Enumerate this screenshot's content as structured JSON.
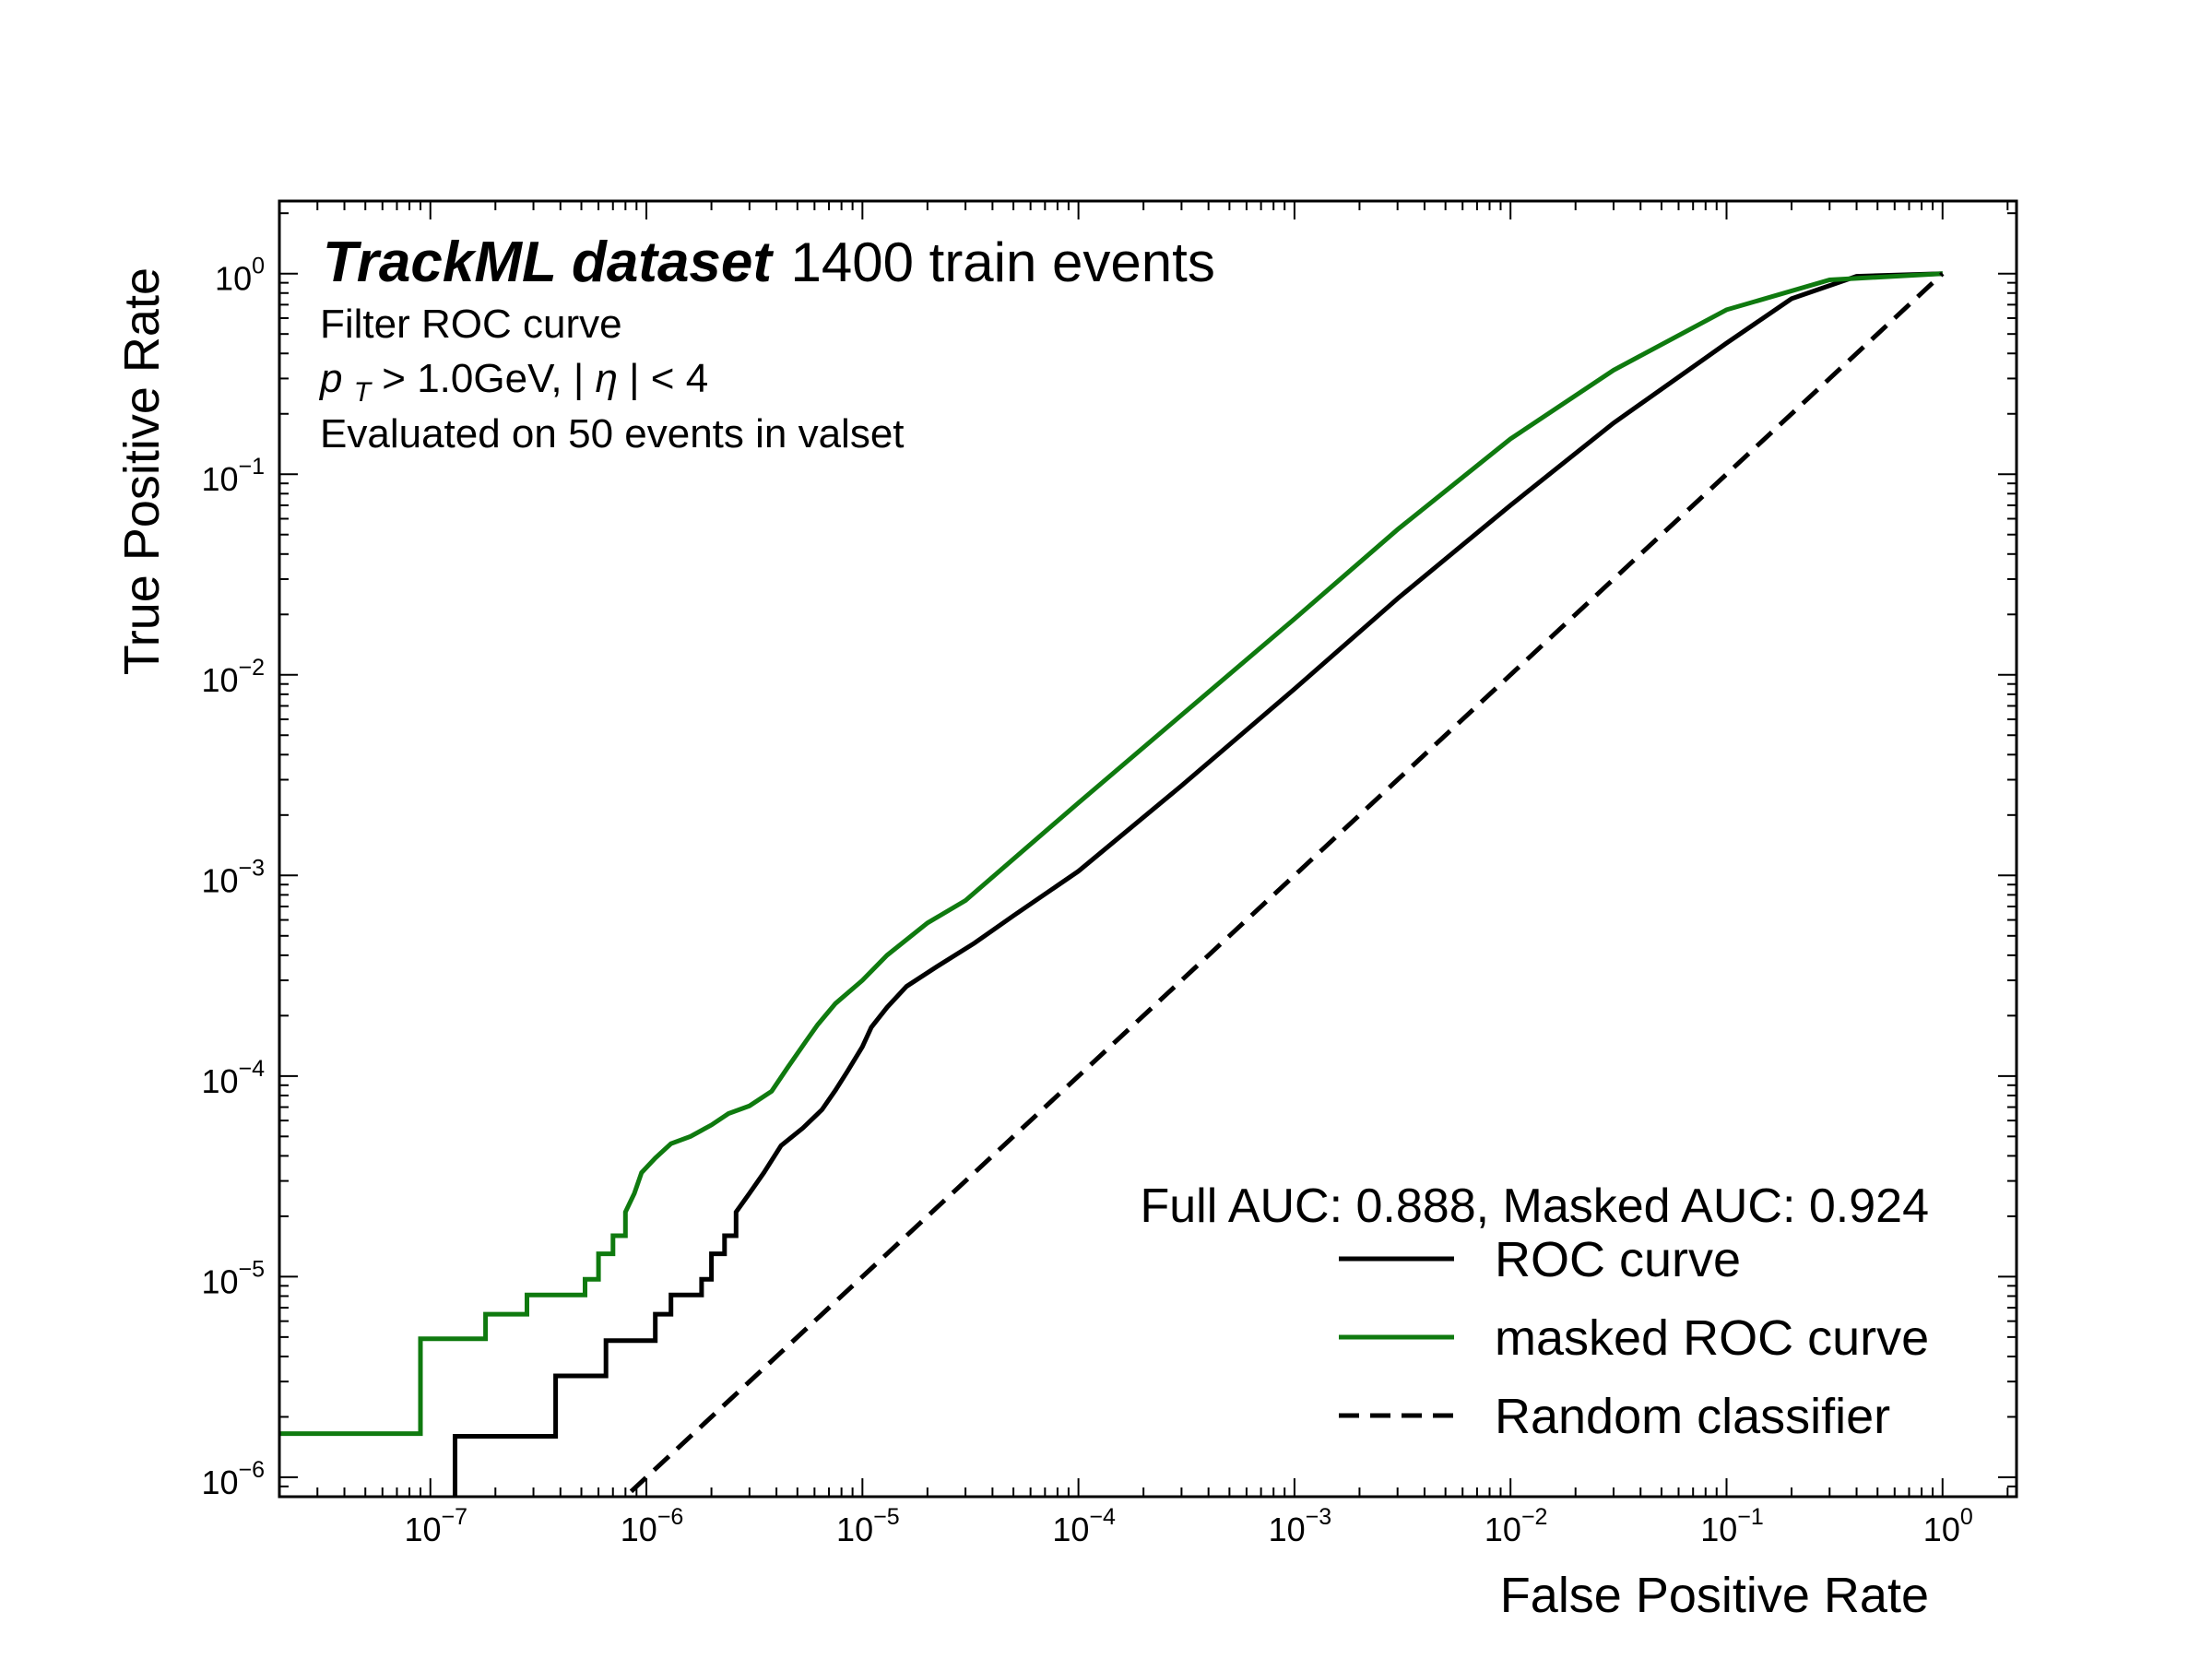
{
  "chart_data": {
    "type": "line",
    "xscale": "log",
    "yscale": "log",
    "xlim": [
      2e-08,
      2.2
    ],
    "ylim": [
      8e-07,
      2.3
    ],
    "xlabel": "False Positive Rate",
    "ylabel": "True Positive Rate",
    "x_ticks": [
      "10^-7",
      "10^-6",
      "10^-5",
      "10^-4",
      "10^-3",
      "10^-2",
      "10^-1",
      "10^0"
    ],
    "y_ticks": [
      "10^-6",
      "10^-5",
      "10^-4",
      "10^-3",
      "10^-2",
      "10^-1",
      "10^0"
    ],
    "grid": false,
    "legend_position": "lower-right",
    "experiment": {
      "bold": "TrackML dataset",
      "text": "1400 train events"
    },
    "annotations": {
      "line1": "Filter ROC curve",
      "pt_symbol": "p",
      "pt_subscript": "T",
      "pt_cut": " > 1.0GeV, |",
      "eta_symbol": "η",
      "eta_cut": "| < 4",
      "line3": "Evaluated on 50 events in valset"
    },
    "auc_text": "Full AUC: 0.888, Masked AUC:  0.924",
    "series": [
      {
        "name": "ROC curve",
        "color": "#000000",
        "style": "solid",
        "points": [
          [
            1.3e-07,
            8e-07
          ],
          [
            1.3e-07,
            1.6e-06
          ],
          [
            3.8e-07,
            1.6e-06
          ],
          [
            3.8e-07,
            3.2e-06
          ],
          [
            6.5e-07,
            3.2e-06
          ],
          [
            6.5e-07,
            4.8e-06
          ],
          [
            1.1e-06,
            4.8e-06
          ],
          [
            1.1e-06,
            6.5e-06
          ],
          [
            1.3e-06,
            6.5e-06
          ],
          [
            1.3e-06,
            8.1e-06
          ],
          [
            1.8e-06,
            8.1e-06
          ],
          [
            1.8e-06,
            9.7e-06
          ],
          [
            2e-06,
            9.7e-06
          ],
          [
            2e-06,
            1.3e-05
          ],
          [
            2.3e-06,
            1.3e-05
          ],
          [
            2.3e-06,
            1.6e-05
          ],
          [
            2.6e-06,
            1.6e-05
          ],
          [
            2.6e-06,
            2.1e-05
          ],
          [
            3e-06,
            2.6e-05
          ],
          [
            3.5e-06,
            3.3e-05
          ],
          [
            4.2e-06,
            4.5e-05
          ],
          [
            5.3e-06,
            5.5e-05
          ],
          [
            6.5e-06,
            6.8e-05
          ],
          [
            7.5e-06,
            8.5e-05
          ],
          [
            8.5e-06,
            0.000105
          ],
          [
            1e-05,
            0.00014
          ],
          [
            1.1e-05,
            0.000175
          ],
          [
            1.3e-05,
            0.00022
          ],
          [
            1.6e-05,
            0.00028
          ],
          [
            2.2e-05,
            0.00035
          ],
          [
            3.3e-05,
            0.00046
          ],
          [
            5e-05,
            0.00063
          ],
          [
            0.0001,
            0.00105
          ],
          [
            0.0003,
            0.0028
          ],
          [
            0.001,
            0.0085
          ],
          [
            0.003,
            0.024
          ],
          [
            0.01,
            0.07
          ],
          [
            0.03,
            0.18
          ],
          [
            0.1,
            0.45
          ],
          [
            0.2,
            0.75
          ],
          [
            0.4,
            0.97
          ],
          [
            1.0,
            1.0
          ]
        ]
      },
      {
        "name": "masked ROC curve",
        "color": "#0f7a0f",
        "style": "solid",
        "points": [
          [
            2e-08,
            1.65e-06
          ],
          [
            9e-08,
            1.65e-06
          ],
          [
            9e-08,
            4.9e-06
          ],
          [
            1.8e-07,
            4.9e-06
          ],
          [
            1.8e-07,
            6.5e-06
          ],
          [
            2.8e-07,
            6.5e-06
          ],
          [
            2.8e-07,
            8.1e-06
          ],
          [
            5.2e-07,
            8.1e-06
          ],
          [
            5.2e-07,
            9.7e-06
          ],
          [
            6e-07,
            9.7e-06
          ],
          [
            6e-07,
            1.3e-05
          ],
          [
            7e-07,
            1.3e-05
          ],
          [
            7e-07,
            1.6e-05
          ],
          [
            8e-07,
            1.6e-05
          ],
          [
            8e-07,
            2.1e-05
          ],
          [
            8.8e-07,
            2.6e-05
          ],
          [
            9.5e-07,
            3.3e-05
          ],
          [
            1.1e-06,
            3.9e-05
          ],
          [
            1.3e-06,
            4.6e-05
          ],
          [
            1.6e-06,
            5e-05
          ],
          [
            2e-06,
            5.7e-05
          ],
          [
            2.4e-06,
            6.5e-05
          ],
          [
            3e-06,
            7.1e-05
          ],
          [
            3.8e-06,
            8.4e-05
          ],
          [
            4.5e-06,
            0.00011
          ],
          [
            5.5e-06,
            0.00015
          ],
          [
            6.2e-06,
            0.00018
          ],
          [
            7.5e-06,
            0.00023
          ],
          [
            1e-05,
            0.0003
          ],
          [
            1.3e-05,
            0.0004
          ],
          [
            2e-05,
            0.00058
          ],
          [
            3e-05,
            0.00075
          ],
          [
            0.0001,
            0.0023
          ],
          [
            0.0003,
            0.0063
          ],
          [
            0.001,
            0.019
          ],
          [
            0.003,
            0.053
          ],
          [
            0.01,
            0.15
          ],
          [
            0.03,
            0.33
          ],
          [
            0.1,
            0.66
          ],
          [
            0.3,
            0.93
          ],
          [
            1.0,
            1.0
          ]
        ]
      },
      {
        "name": "Random classifier",
        "color": "#000000",
        "style": "dashed",
        "points": [
          [
            8.5e-07,
            8.5e-07
          ],
          [
            1.0,
            1.0
          ]
        ]
      }
    ]
  }
}
